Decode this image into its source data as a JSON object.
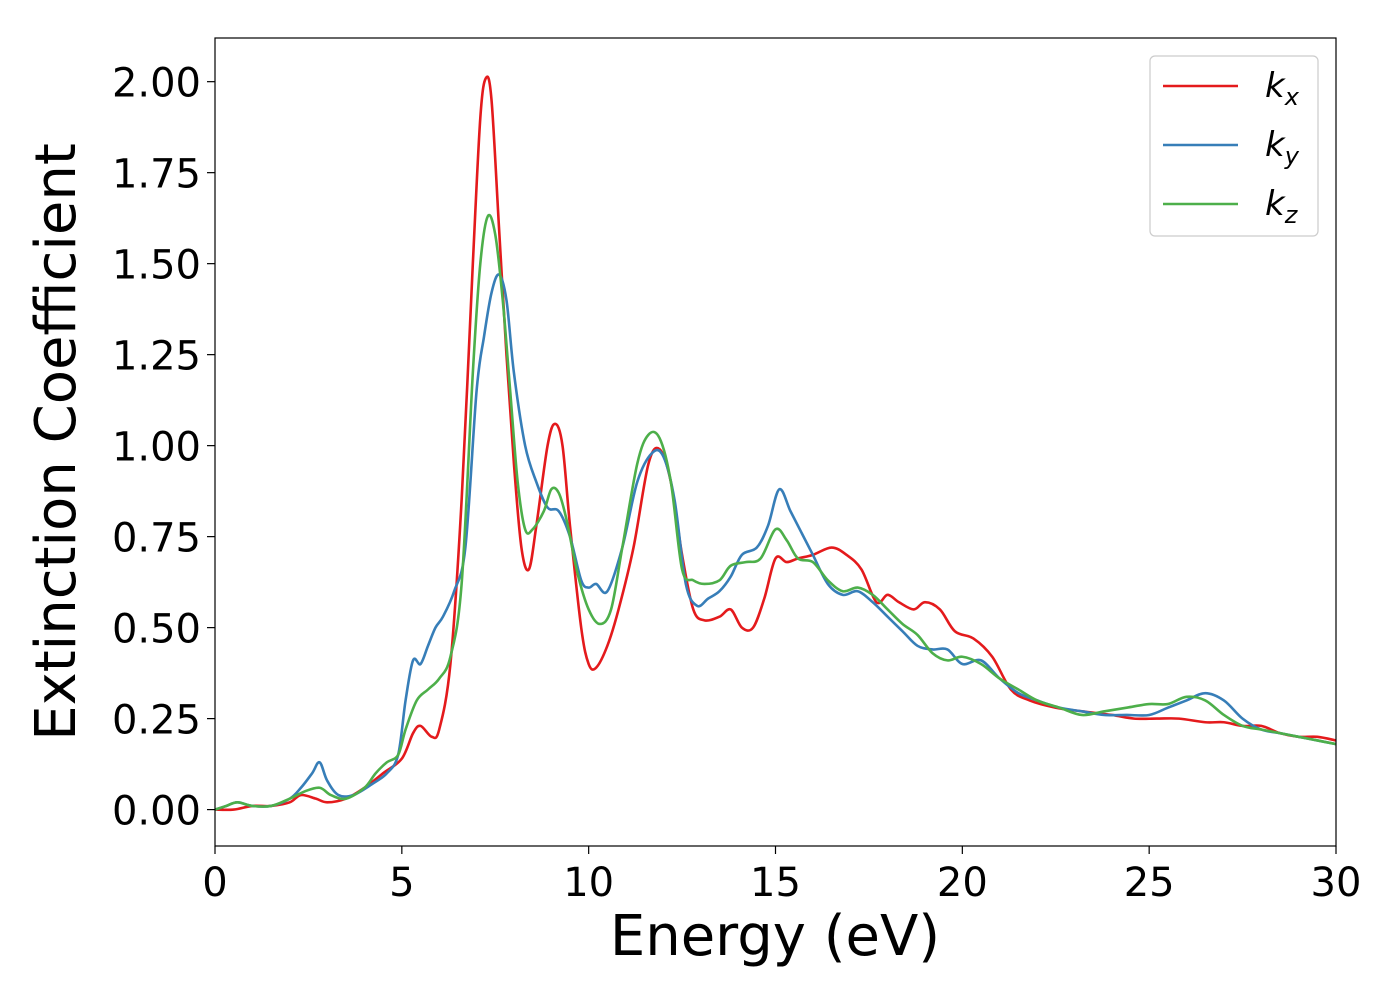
{
  "chart_data": {
    "type": "line",
    "title": "",
    "xlabel": "Energy (eV)",
    "ylabel": "Extinction Coefficient",
    "xlim": [
      0,
      30
    ],
    "ylim": [
      -0.1,
      2.12
    ],
    "xticks": [
      0,
      5,
      10,
      15,
      20,
      25,
      30
    ],
    "xtick_labels": [
      "0",
      "5",
      "10",
      "15",
      "20",
      "25",
      "30"
    ],
    "yticks": [
      0.0,
      0.25,
      0.5,
      0.75,
      1.0,
      1.25,
      1.5,
      1.75,
      2.0
    ],
    "ytick_labels": [
      "0.00",
      "0.25",
      "0.50",
      "0.75",
      "1.00",
      "1.25",
      "1.50",
      "1.75",
      "2.00"
    ],
    "grid": false,
    "legend_position": "top-right",
    "series": [
      {
        "name": "k_x",
        "label_main": "k",
        "label_sub": "x",
        "color": "#e41a1c",
        "x": [
          0,
          0.5,
          1,
          1.5,
          2,
          2.3,
          2.7,
          3,
          3.5,
          4,
          4.5,
          5,
          5.3,
          5.5,
          5.8,
          6,
          6.3,
          6.6,
          6.9,
          7.1,
          7.25,
          7.4,
          7.6,
          7.8,
          8,
          8.2,
          8.4,
          8.6,
          8.9,
          9.1,
          9.3,
          9.5,
          9.8,
          10,
          10.2,
          10.5,
          10.8,
          11.2,
          11.6,
          11.9,
          12.2,
          12.5,
          12.8,
          13.1,
          13.5,
          13.8,
          14.1,
          14.4,
          14.7,
          15,
          15.3,
          15.6,
          16,
          16.5,
          16.9,
          17.3,
          17.7,
          18,
          18.3,
          18.7,
          19,
          19.4,
          19.8,
          20.3,
          20.8,
          21.3,
          21.8,
          22.5,
          23.2,
          24,
          24.6,
          25.2,
          25.8,
          26.5,
          27,
          27.5,
          28,
          28.5,
          29,
          29.5,
          30
        ],
        "y": [
          0.0,
          0.0,
          0.01,
          0.01,
          0.02,
          0.04,
          0.03,
          0.02,
          0.03,
          0.06,
          0.1,
          0.14,
          0.21,
          0.23,
          0.2,
          0.22,
          0.4,
          0.85,
          1.5,
          1.9,
          2.01,
          1.95,
          1.6,
          1.25,
          0.95,
          0.72,
          0.66,
          0.78,
          1.0,
          1.06,
          1.0,
          0.78,
          0.5,
          0.4,
          0.39,
          0.45,
          0.55,
          0.72,
          0.95,
          0.99,
          0.9,
          0.7,
          0.55,
          0.52,
          0.53,
          0.55,
          0.5,
          0.5,
          0.58,
          0.69,
          0.68,
          0.69,
          0.7,
          0.72,
          0.7,
          0.66,
          0.57,
          0.59,
          0.57,
          0.55,
          0.57,
          0.55,
          0.49,
          0.47,
          0.42,
          0.33,
          0.3,
          0.28,
          0.27,
          0.26,
          0.25,
          0.25,
          0.25,
          0.24,
          0.24,
          0.23,
          0.23,
          0.21,
          0.2,
          0.2,
          0.19
        ]
      },
      {
        "name": "k_y",
        "label_main": "k",
        "label_sub": "y",
        "color": "#377eb8",
        "x": [
          0,
          0.3,
          0.6,
          1,
          1.5,
          2,
          2.3,
          2.6,
          2.8,
          3,
          3.3,
          3.7,
          4.2,
          4.6,
          4.9,
          5.1,
          5.3,
          5.5,
          5.7,
          5.9,
          6.1,
          6.4,
          6.7,
          7,
          7.2,
          7.4,
          7.6,
          7.8,
          8,
          8.3,
          8.6,
          8.9,
          9.2,
          9.5,
          9.8,
          10,
          10.2,
          10.5,
          10.9,
          11.3,
          11.7,
          12,
          12.3,
          12.6,
          12.9,
          13.2,
          13.5,
          13.8,
          14.1,
          14.5,
          14.8,
          15.1,
          15.4,
          15.7,
          16,
          16.4,
          16.8,
          17.2,
          17.6,
          18,
          18.4,
          18.8,
          19.2,
          19.6,
          20,
          20.5,
          21,
          21.5,
          22,
          22.6,
          23.2,
          23.8,
          24.4,
          25,
          25.5,
          26,
          26.5,
          27,
          27.5,
          28,
          28.5,
          29,
          29.5,
          30
        ],
        "y": [
          0.0,
          0.01,
          0.02,
          0.01,
          0.01,
          0.03,
          0.06,
          0.1,
          0.13,
          0.08,
          0.04,
          0.04,
          0.07,
          0.1,
          0.15,
          0.3,
          0.41,
          0.4,
          0.45,
          0.5,
          0.53,
          0.6,
          0.72,
          1.15,
          1.3,
          1.42,
          1.47,
          1.4,
          1.2,
          1.0,
          0.9,
          0.83,
          0.82,
          0.75,
          0.63,
          0.61,
          0.62,
          0.6,
          0.72,
          0.9,
          0.98,
          0.97,
          0.85,
          0.62,
          0.56,
          0.58,
          0.6,
          0.64,
          0.7,
          0.72,
          0.78,
          0.88,
          0.82,
          0.76,
          0.7,
          0.62,
          0.59,
          0.6,
          0.57,
          0.53,
          0.49,
          0.45,
          0.44,
          0.44,
          0.4,
          0.41,
          0.36,
          0.32,
          0.3,
          0.28,
          0.27,
          0.26,
          0.26,
          0.26,
          0.28,
          0.3,
          0.32,
          0.3,
          0.25,
          0.22,
          0.21,
          0.2,
          0.19,
          0.18
        ]
      },
      {
        "name": "k_z",
        "label_main": "k",
        "label_sub": "z",
        "color": "#4daf4a",
        "x": [
          0,
          0.3,
          0.6,
          1,
          1.5,
          2,
          2.4,
          2.8,
          3.1,
          3.5,
          4,
          4.3,
          4.6,
          4.9,
          5.1,
          5.4,
          5.7,
          6,
          6.3,
          6.6,
          6.9,
          7.1,
          7.3,
          7.5,
          7.7,
          7.9,
          8.1,
          8.3,
          8.5,
          8.8,
          9,
          9.2,
          9.4,
          9.7,
          10,
          10.3,
          10.6,
          10.9,
          11.3,
          11.6,
          11.9,
          12.2,
          12.5,
          12.8,
          13.1,
          13.5,
          13.8,
          14.2,
          14.6,
          15,
          15.3,
          15.6,
          16,
          16.4,
          16.8,
          17.2,
          17.6,
          18,
          18.4,
          18.8,
          19.2,
          19.6,
          20,
          20.5,
          21,
          21.5,
          22,
          22.6,
          23.2,
          23.8,
          24.4,
          25,
          25.5,
          26,
          26.5,
          27,
          27.5,
          28,
          28.5,
          29,
          29.5,
          30
        ],
        "y": [
          0.0,
          0.01,
          0.02,
          0.01,
          0.01,
          0.03,
          0.05,
          0.06,
          0.04,
          0.03,
          0.06,
          0.1,
          0.13,
          0.15,
          0.22,
          0.3,
          0.33,
          0.36,
          0.42,
          0.62,
          1.2,
          1.5,
          1.63,
          1.58,
          1.4,
          1.15,
          0.9,
          0.77,
          0.77,
          0.82,
          0.88,
          0.87,
          0.8,
          0.65,
          0.55,
          0.51,
          0.55,
          0.72,
          0.95,
          1.03,
          1.02,
          0.9,
          0.66,
          0.63,
          0.62,
          0.63,
          0.67,
          0.68,
          0.69,
          0.77,
          0.74,
          0.69,
          0.68,
          0.63,
          0.6,
          0.61,
          0.59,
          0.55,
          0.51,
          0.48,
          0.43,
          0.41,
          0.42,
          0.4,
          0.36,
          0.33,
          0.3,
          0.28,
          0.26,
          0.27,
          0.28,
          0.29,
          0.29,
          0.31,
          0.3,
          0.26,
          0.23,
          0.22,
          0.21,
          0.2,
          0.19,
          0.18
        ]
      }
    ]
  }
}
